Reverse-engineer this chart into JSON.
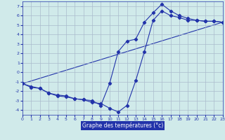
{
  "xlabel": "Graphe des températures (°c)",
  "bg_color": "#d0eaea",
  "grid_color": "#aabbcc",
  "line_color": "#2233aa",
  "xlim": [
    0,
    23
  ],
  "ylim": [
    -4.5,
    7.5
  ],
  "yticks": [
    -4,
    -3,
    -2,
    -1,
    0,
    1,
    2,
    3,
    4,
    5,
    6,
    7
  ],
  "xticks": [
    0,
    1,
    2,
    3,
    4,
    5,
    6,
    7,
    8,
    9,
    10,
    11,
    12,
    13,
    14,
    15,
    16,
    17,
    18,
    19,
    20,
    21,
    22,
    23
  ],
  "line1_x": [
    0,
    1,
    2,
    3,
    4,
    5,
    6,
    7,
    8,
    9,
    10,
    11,
    12,
    13,
    14,
    15,
    16,
    17,
    18,
    19,
    20,
    21,
    22,
    23
  ],
  "line1_y": [
    -1.2,
    -1.6,
    -1.7,
    -2.2,
    -2.5,
    -2.6,
    -2.8,
    -2.9,
    -3.0,
    -3.5,
    -1.2,
    2.2,
    3.3,
    3.5,
    5.3,
    6.3,
    7.2,
    6.5,
    6.0,
    5.7,
    5.5,
    5.4,
    5.4,
    5.3
  ],
  "line2_x": [
    0,
    1,
    2,
    3,
    4,
    5,
    6,
    7,
    8,
    9,
    10,
    11,
    12,
    13,
    14,
    15,
    16,
    17,
    18,
    19,
    20,
    21,
    22,
    23
  ],
  "line2_y": [
    -1.2,
    -1.5,
    -1.7,
    -2.2,
    -2.4,
    -2.5,
    -2.8,
    -2.9,
    -3.2,
    -3.3,
    -3.8,
    -4.2,
    -3.5,
    -0.9,
    2.2,
    5.5,
    6.5,
    6.0,
    5.8,
    5.5,
    5.5,
    5.4,
    5.4,
    5.3
  ],
  "line3_x": [
    0,
    23
  ],
  "line3_y": [
    -1.2,
    5.3
  ]
}
